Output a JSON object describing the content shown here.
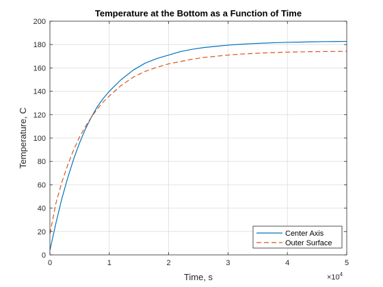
{
  "chart_data": {
    "type": "line",
    "title": "Temperature at the Bottom as a Function of Time",
    "xlabel": "Time, s",
    "ylabel": "Temperature, C",
    "x_exponent_label": "×10",
    "x_exponent_power": "4",
    "xlim": [
      0,
      50000
    ],
    "ylim": [
      0,
      200
    ],
    "x_ticks": [
      0,
      10000,
      20000,
      30000,
      40000,
      50000
    ],
    "x_tick_labels": [
      "0",
      "1",
      "2",
      "3",
      "4",
      "5"
    ],
    "y_ticks": [
      0,
      20,
      40,
      60,
      80,
      100,
      120,
      140,
      160,
      180,
      200
    ],
    "y_tick_labels": [
      "0",
      "20",
      "40",
      "60",
      "80",
      "100",
      "120",
      "140",
      "160",
      "180",
      "200"
    ],
    "grid": true,
    "legend_position": "bottom-right",
    "x": [
      0,
      1000,
      2000,
      3000,
      4000,
      5000,
      6000,
      7000,
      8000,
      9000,
      10000,
      12000,
      14000,
      16000,
      18000,
      20000,
      22000,
      24000,
      26000,
      28000,
      30000,
      32000,
      34000,
      36000,
      38000,
      40000,
      42000,
      44000,
      46000,
      48000,
      50000
    ],
    "series": [
      {
        "name": "Center Axis",
        "color": "#0072BD",
        "style": "solid",
        "values": [
          4,
          27,
          48,
          66,
          82,
          96,
          108,
          118,
          127,
          134,
          140,
          150,
          158,
          164,
          168,
          171,
          174,
          176,
          177.5,
          178.5,
          179.5,
          180.2,
          180.8,
          181.2,
          181.6,
          181.9,
          182.1,
          182.3,
          182.5,
          182.6,
          182.7
        ]
      },
      {
        "name": "Outer Surface",
        "color": "#D95319",
        "style": "dashed",
        "values": [
          18,
          44,
          62,
          77,
          90,
          101,
          110,
          118,
          125,
          131,
          136,
          145,
          152,
          157,
          160.5,
          163.5,
          165.5,
          167.5,
          169,
          170,
          171,
          171.8,
          172.3,
          172.8,
          173.2,
          173.5,
          173.7,
          173.9,
          174,
          174.1,
          174.2
        ]
      }
    ]
  }
}
